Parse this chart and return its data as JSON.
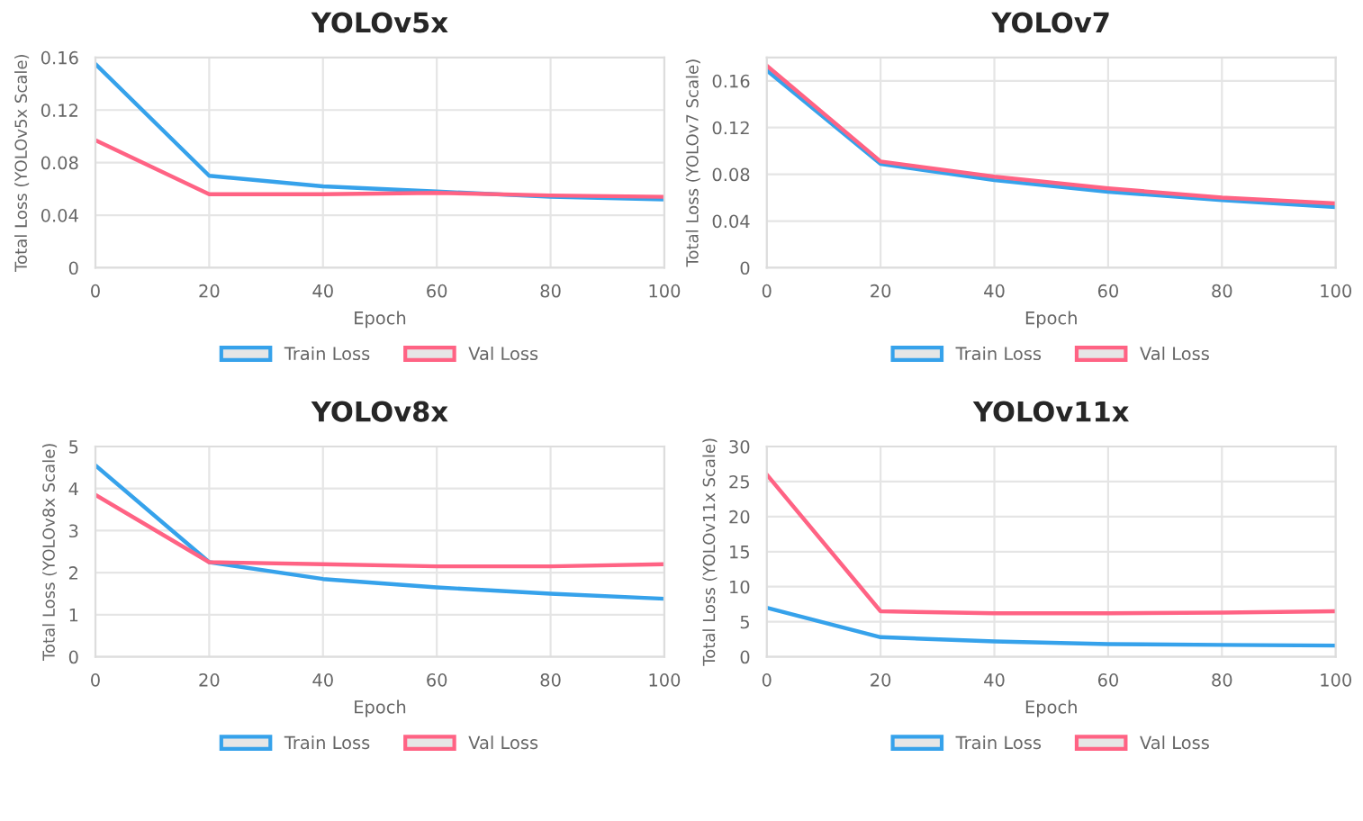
{
  "chart_data": [
    {
      "type": "line",
      "title": "YOLOv5x",
      "xlabel": "Epoch",
      "ylabel": "Total Loss (YOLOv5x Scale)",
      "x": [
        0,
        20,
        40,
        60,
        80,
        100
      ],
      "xlim": [
        0,
        100
      ],
      "xticks": [
        0,
        20,
        40,
        60,
        80,
        100
      ],
      "ylim": [
        0,
        0.16
      ],
      "yticks": [
        0,
        0.04,
        0.08,
        0.12,
        0.16
      ],
      "grid": true,
      "legend": "bottom",
      "series": [
        {
          "name": "Train Loss",
          "color": "#36a2eb",
          "values": [
            0.155,
            0.07,
            0.062,
            0.058,
            0.054,
            0.052
          ]
        },
        {
          "name": "Val Loss",
          "color": "#ff6384",
          "values": [
            0.097,
            0.056,
            0.056,
            0.057,
            0.055,
            0.054
          ]
        }
      ]
    },
    {
      "type": "line",
      "title": "YOLOv7",
      "xlabel": "Epoch",
      "ylabel": "Total Loss (YOLOv7 Scale)",
      "x": [
        0,
        20,
        40,
        60,
        80,
        100
      ],
      "xlim": [
        0,
        100
      ],
      "xticks": [
        0,
        20,
        40,
        60,
        80,
        100
      ],
      "ylim": [
        0,
        0.18
      ],
      "yticks": [
        0,
        0.04,
        0.08,
        0.12,
        0.16
      ],
      "grid": true,
      "legend": "bottom",
      "series": [
        {
          "name": "Train Loss",
          "color": "#36a2eb",
          "values": [
            0.169,
            0.089,
            0.075,
            0.065,
            0.058,
            0.052
          ]
        },
        {
          "name": "Val Loss",
          "color": "#ff6384",
          "values": [
            0.173,
            0.091,
            0.078,
            0.068,
            0.06,
            0.055
          ]
        }
      ]
    },
    {
      "type": "line",
      "title": "YOLOv8x",
      "xlabel": "Epoch",
      "ylabel": "Total Loss (YOLOv8x Scale)",
      "x": [
        0,
        20,
        40,
        60,
        80,
        100
      ],
      "xlim": [
        0,
        100
      ],
      "xticks": [
        0,
        20,
        40,
        60,
        80,
        100
      ],
      "ylim": [
        0,
        5
      ],
      "yticks": [
        0,
        1,
        2,
        3,
        4,
        5
      ],
      "grid": true,
      "legend": "bottom",
      "series": [
        {
          "name": "Train Loss",
          "color": "#36a2eb",
          "values": [
            4.55,
            2.25,
            1.85,
            1.65,
            1.5,
            1.38
          ]
        },
        {
          "name": "Val Loss",
          "color": "#ff6384",
          "values": [
            3.85,
            2.25,
            2.2,
            2.15,
            2.15,
            2.2
          ]
        }
      ]
    },
    {
      "type": "line",
      "title": "YOLOv11x",
      "xlabel": "Epoch",
      "ylabel": "Total Loss (YOLOv11x Scale)",
      "x": [
        0,
        20,
        40,
        60,
        80,
        100
      ],
      "xlim": [
        0,
        100
      ],
      "xticks": [
        0,
        20,
        40,
        60,
        80,
        100
      ],
      "ylim": [
        0,
        30
      ],
      "yticks": [
        0,
        5,
        10,
        15,
        20,
        25,
        30
      ],
      "grid": true,
      "legend": "bottom",
      "series": [
        {
          "name": "Train Loss",
          "color": "#36a2eb",
          "values": [
            7,
            2.8,
            2.2,
            1.8,
            1.7,
            1.6
          ]
        },
        {
          "name": "Val Loss",
          "color": "#ff6384",
          "values": [
            26,
            6.5,
            6.2,
            6.2,
            6.3,
            6.5
          ]
        }
      ]
    }
  ]
}
